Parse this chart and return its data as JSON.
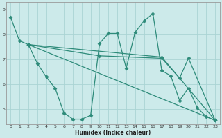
{
  "xlabel": "Humidex (Indice chaleur)",
  "bg_color": "#cceaea",
  "line_color": "#2e8b7a",
  "grid_color": "#aad4d4",
  "xlim": [
    -0.5,
    23.5
  ],
  "ylim": [
    4.4,
    9.3
  ],
  "xticks": [
    0,
    1,
    2,
    3,
    4,
    5,
    6,
    7,
    8,
    9,
    10,
    11,
    12,
    13,
    14,
    15,
    16,
    17,
    18,
    19,
    20,
    21,
    22,
    23
  ],
  "yticks": [
    5,
    6,
    7,
    8,
    9
  ],
  "line1_x": [
    0,
    1,
    2,
    3,
    4,
    5,
    6,
    7,
    8,
    9,
    10,
    11,
    12,
    13,
    14,
    15,
    16,
    17,
    18,
    19,
    20,
    21,
    22,
    23
  ],
  "line1_y": [
    8.7,
    7.75,
    7.6,
    6.85,
    6.3,
    5.85,
    4.85,
    4.6,
    4.6,
    4.75,
    7.65,
    8.05,
    8.05,
    6.65,
    8.1,
    8.55,
    8.85,
    6.55,
    6.35,
    5.35,
    5.85,
    5.05,
    4.7,
    4.55
  ],
  "line2_x": [
    2,
    23
  ],
  "line2_y": [
    7.6,
    4.55
  ],
  "line3_x": [
    2,
    17,
    23
  ],
  "line3_y": [
    7.6,
    7.1,
    4.55
  ],
  "line4_x": [
    2,
    10,
    17,
    19,
    20,
    23
  ],
  "line4_y": [
    7.6,
    7.15,
    7.05,
    6.25,
    7.05,
    4.55
  ]
}
